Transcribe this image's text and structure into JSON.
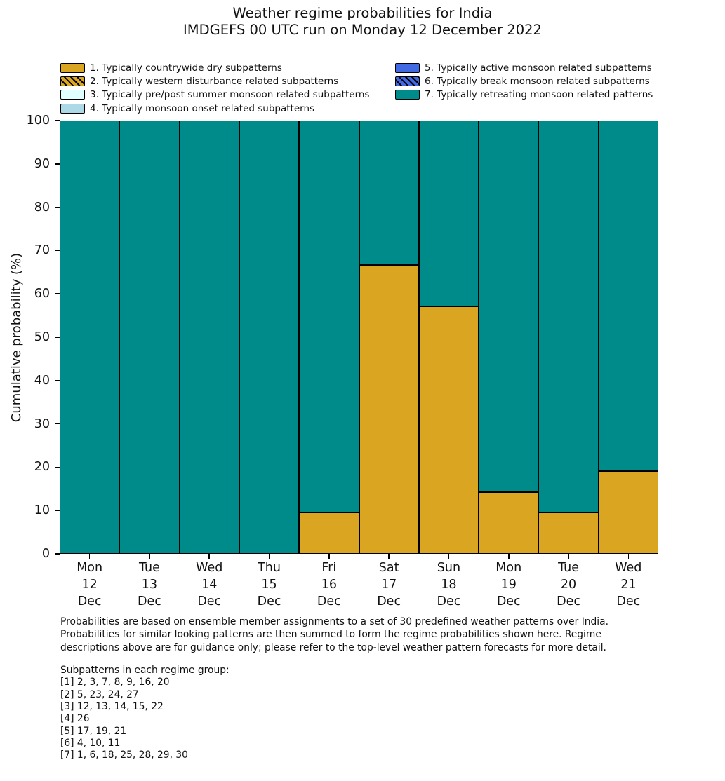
{
  "title": {
    "line1": "Weather regime probabilities for India",
    "line2": "IMDGEFS 00 UTC run on Monday 12 December 2022"
  },
  "legend": {
    "columns": [
      [
        {
          "label": "1. Typically countrywide dry subpatterns",
          "color": "#DAA520",
          "hatch": false
        },
        {
          "label": "2. Typically western disturbance related subpatterns",
          "color": "#DAA520",
          "hatch": true
        },
        {
          "label": "3. Typically pre/post summer monsoon related subpatterns",
          "color": "#E0FFFF",
          "hatch": false
        },
        {
          "label": "4. Typically monsoon onset related subpatterns",
          "color": "#ADD8E6",
          "hatch": false
        }
      ],
      [
        {
          "label": "5. Typically active monsoon related subpatterns",
          "color": "#4169E1",
          "hatch": false
        },
        {
          "label": "6. Typically break monsoon related subpatterns",
          "color": "#4169E1",
          "hatch": true
        },
        {
          "label": "7. Typically retreating monsoon related patterns",
          "color": "#008B8B",
          "hatch": false
        }
      ]
    ]
  },
  "chart_data": {
    "type": "bar",
    "stacked": true,
    "title": "Weather regime probabilities for India",
    "subtitle": "IMDGEFS 00 UTC run on Monday 12 December 2022",
    "ylabel": "Cumulative probability (%)",
    "xlabel": "",
    "ylim": [
      0,
      100
    ],
    "yticks": [
      0,
      10,
      20,
      30,
      40,
      50,
      60,
      70,
      80,
      90,
      100
    ],
    "grid": false,
    "bar_edge_color": "#000000",
    "legend_position": "top",
    "categories": [
      "Mon 12 Dec",
      "Tue 13 Dec",
      "Wed 14 Dec",
      "Thu 15 Dec",
      "Fri 16 Dec",
      "Sat 17 Dec",
      "Sun 18 Dec",
      "Mon 19 Dec",
      "Tue 20 Dec",
      "Wed 21 Dec"
    ],
    "categories_display": [
      {
        "day": "Mon",
        "date": "12",
        "month": "Dec"
      },
      {
        "day": "Tue",
        "date": "13",
        "month": "Dec"
      },
      {
        "day": "Wed",
        "date": "14",
        "month": "Dec"
      },
      {
        "day": "Thu",
        "date": "15",
        "month": "Dec"
      },
      {
        "day": "Fri",
        "date": "16",
        "month": "Dec"
      },
      {
        "day": "Sat",
        "date": "17",
        "month": "Dec"
      },
      {
        "day": "Sun",
        "date": "18",
        "month": "Dec"
      },
      {
        "day": "Mon",
        "date": "19",
        "month": "Dec"
      },
      {
        "day": "Tue",
        "date": "20",
        "month": "Dec"
      },
      {
        "day": "Wed",
        "date": "21",
        "month": "Dec"
      }
    ],
    "series": [
      {
        "name": "1. Typically countrywide dry subpatterns",
        "color": "#DAA520",
        "values": [
          0,
          0,
          0,
          0,
          9.52,
          66.67,
          57.14,
          14.29,
          9.52,
          19.05
        ]
      },
      {
        "name": "7. Typically retreating monsoon related patterns",
        "color": "#008B8B",
        "values": [
          100,
          100,
          100,
          100,
          90.48,
          33.33,
          42.86,
          85.71,
          90.48,
          80.95
        ]
      }
    ]
  },
  "footnote": {
    "lines": [
      "Probabilities are based on ensemble member assignments to a set of 30 predefined weather patterns over India.",
      "Probabilities for similar looking patterns are then summed to form the regime probabilities shown here. Regime",
      "descriptions above are for guidance only; please refer to the top-level weather pattern forecasts for more detail."
    ]
  },
  "subpatterns": {
    "header": "Subpatterns in each regime group:",
    "rows": [
      "[1] 2, 3, 7, 8, 9, 16, 20",
      "[2] 5, 23, 24, 27",
      "[3] 12, 13, 14, 15, 22",
      "[4] 26",
      "[5] 17, 19, 21",
      "[6] 4, 10, 11",
      "[7] 1, 6, 18, 25, 28, 29, 30"
    ]
  }
}
